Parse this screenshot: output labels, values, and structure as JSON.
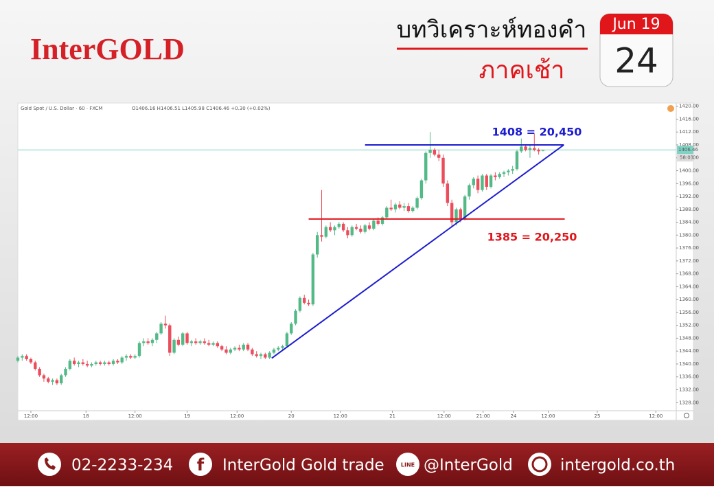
{
  "header": {
    "logo": "InterGOLD",
    "title": "บทวิเคราะห์ทองคำ",
    "subtitle": "ภาคเช้า",
    "calendar_month": "Jun 19",
    "calendar_day": "24"
  },
  "chart_data": {
    "type": "candlestick",
    "symbol": "Gold Spot / U.S. Dollar · 60 · FXCM",
    "ohlc_text": "O1406.16 H1406.51 L1405.98 C1406.46 +0.30 (+0.02%)",
    "up_color": "#53b987",
    "down_color": "#eb4d5c",
    "x": [
      9,
      10,
      11,
      12,
      13,
      14,
      15,
      16,
      17,
      18,
      19,
      20,
      21,
      22,
      23,
      24,
      25,
      26,
      27,
      28,
      29,
      30,
      31,
      32,
      33,
      34,
      35,
      36,
      37,
      38,
      39,
      40,
      41,
      42,
      43,
      44,
      45,
      46,
      47,
      48,
      49,
      50,
      51,
      52,
      53,
      54,
      55,
      56,
      57,
      58,
      59,
      60,
      61,
      62,
      63,
      64,
      65,
      66,
      67,
      68,
      69,
      70,
      71,
      72,
      73,
      74,
      75,
      76,
      77,
      78,
      79,
      80,
      81,
      82,
      83,
      84,
      85,
      86,
      87,
      88,
      89,
      90,
      91,
      92,
      93,
      94,
      95,
      96,
      97,
      98,
      99,
      100,
      101,
      102,
      103,
      104,
      105,
      106,
      107,
      108,
      109,
      110,
      111,
      112,
      113,
      114,
      115,
      116,
      117,
      118,
      119,
      120,
      121,
      122,
      123,
      124,
      125,
      126,
      127,
      128,
      129,
      130
    ],
    "candles": [
      [
        1341,
        1342.5,
        1340.5,
        1342
      ],
      [
        1342,
        1343,
        1341,
        1342.5
      ],
      [
        1342.5,
        1343,
        1341,
        1341.5
      ],
      [
        1341.5,
        1342,
        1340,
        1340.5
      ],
      [
        1340.5,
        1341,
        1338,
        1338.5
      ],
      [
        1338.5,
        1339,
        1336,
        1336.5
      ],
      [
        1336.5,
        1337,
        1334.5,
        1335.5
      ],
      [
        1335.5,
        1336,
        1334,
        1334.5
      ],
      [
        1334.5,
        1335.5,
        1333.5,
        1335
      ],
      [
        1335,
        1335.5,
        1333.5,
        1334
      ],
      [
        1334,
        1337,
        1333.5,
        1336.5
      ],
      [
        1336.5,
        1339,
        1336,
        1338.5
      ],
      [
        1338.5,
        1341.5,
        1338,
        1341
      ],
      [
        1341,
        1342,
        1339.5,
        1340
      ],
      [
        1340,
        1341,
        1339,
        1340.5
      ],
      [
        1340.5,
        1341.5,
        1339.5,
        1340
      ],
      [
        1340,
        1341,
        1339,
        1339.5
      ],
      [
        1339.5,
        1340.5,
        1339,
        1340
      ],
      [
        1340,
        1341,
        1339.5,
        1340.5
      ],
      [
        1340.5,
        1341,
        1339.5,
        1340
      ],
      [
        1340,
        1341,
        1339.5,
        1340.5
      ],
      [
        1340.5,
        1341,
        1339.5,
        1340
      ],
      [
        1340,
        1341.5,
        1339.5,
        1341
      ],
      [
        1341,
        1341.5,
        1340,
        1340.5
      ],
      [
        1340.5,
        1342.5,
        1340,
        1342
      ],
      [
        1342,
        1343,
        1341,
        1342.5
      ],
      [
        1342.5,
        1343,
        1341.5,
        1342
      ],
      [
        1342,
        1343,
        1341.5,
        1342.5
      ],
      [
        1342.5,
        1347,
        1342,
        1346.5
      ],
      [
        1346.5,
        1348,
        1345.5,
        1347
      ],
      [
        1347,
        1348,
        1346,
        1346.5
      ],
      [
        1346.5,
        1348,
        1345.5,
        1347.5
      ],
      [
        1347.5,
        1350,
        1346.5,
        1349.5
      ],
      [
        1349.5,
        1353,
        1349,
        1352.5
      ],
      [
        1352.5,
        1355,
        1351,
        1352
      ],
      [
        1352,
        1352.5,
        1342.5,
        1343.5
      ],
      [
        1343.5,
        1348,
        1343,
        1347.5
      ],
      [
        1347.5,
        1348.5,
        1345.5,
        1346
      ],
      [
        1346,
        1350,
        1345.5,
        1349.5
      ],
      [
        1349.5,
        1350,
        1346,
        1346.5
      ],
      [
        1346.5,
        1347.5,
        1345.5,
        1347
      ],
      [
        1347,
        1348,
        1346,
        1346.5
      ],
      [
        1346.5,
        1347.5,
        1346,
        1347
      ],
      [
        1347,
        1348,
        1346,
        1346.5
      ],
      [
        1346.5,
        1347.5,
        1345.5,
        1346
      ],
      [
        1346,
        1347,
        1345.5,
        1346.5
      ],
      [
        1346.5,
        1347,
        1345,
        1345.5
      ],
      [
        1345.5,
        1346,
        1344,
        1344.5
      ],
      [
        1344.5,
        1345.5,
        1343,
        1343.5
      ],
      [
        1343.5,
        1345,
        1343,
        1344.5
      ],
      [
        1344.5,
        1345.5,
        1344,
        1345
      ],
      [
        1345,
        1346,
        1344,
        1344.5
      ],
      [
        1344.5,
        1346.5,
        1344,
        1346
      ],
      [
        1346,
        1346.5,
        1344,
        1344.5
      ],
      [
        1344.5,
        1345,
        1342.5,
        1343
      ],
      [
        1343,
        1344,
        1342,
        1342.5
      ],
      [
        1342.5,
        1343.5,
        1341.5,
        1343
      ],
      [
        1343,
        1343.5,
        1341.5,
        1342
      ],
      [
        1342,
        1344,
        1341.5,
        1343.5
      ],
      [
        1343.5,
        1345,
        1343,
        1344.5
      ],
      [
        1344.5,
        1345.5,
        1344,
        1345
      ],
      [
        1345,
        1346,
        1344,
        1345.5
      ],
      [
        1345.5,
        1350,
        1345,
        1349.5
      ],
      [
        1349.5,
        1353,
        1349,
        1352.5
      ],
      [
        1352.5,
        1357,
        1352,
        1356.5
      ],
      [
        1356.5,
        1361,
        1356,
        1360.5
      ],
      [
        1360.5,
        1361.5,
        1358.5,
        1359
      ],
      [
        1359,
        1360,
        1358,
        1358.5
      ],
      [
        1358.5,
        1374.5,
        1358,
        1374
      ],
      [
        1374,
        1381,
        1373,
        1380
      ],
      [
        1380,
        1394,
        1378,
        1379.5
      ],
      [
        1379.5,
        1383,
        1379,
        1382.5
      ],
      [
        1382.5,
        1384,
        1381,
        1381.5
      ],
      [
        1381.5,
        1383,
        1380,
        1382.5
      ],
      [
        1382.5,
        1384,
        1382,
        1383.5
      ],
      [
        1383.5,
        1384,
        1381,
        1381.5
      ],
      [
        1381.5,
        1382.5,
        1379,
        1380
      ],
      [
        1380,
        1383,
        1379.5,
        1382.5
      ],
      [
        1382.5,
        1383.5,
        1381.5,
        1382
      ],
      [
        1382,
        1383,
        1380.5,
        1381
      ],
      [
        1381,
        1383.5,
        1380.5,
        1383
      ],
      [
        1383,
        1384,
        1381.5,
        1382
      ],
      [
        1382,
        1385,
        1381.5,
        1384.5
      ],
      [
        1384.5,
        1385.5,
        1383,
        1383.5
      ],
      [
        1383.5,
        1386,
        1383,
        1385.5
      ],
      [
        1385.5,
        1389,
        1385,
        1388.5
      ],
      [
        1388.5,
        1391,
        1387.5,
        1388
      ],
      [
        1388,
        1390,
        1387,
        1389.5
      ],
      [
        1389.5,
        1390.5,
        1388,
        1388.5
      ],
      [
        1388.5,
        1390,
        1387.5,
        1389
      ],
      [
        1389,
        1390,
        1387,
        1387.5
      ],
      [
        1387.5,
        1389,
        1387,
        1388.5
      ],
      [
        1388.5,
        1392,
        1388,
        1391.5
      ],
      [
        1391.5,
        1397.5,
        1391,
        1397
      ],
      [
        1397,
        1406,
        1396,
        1405.5
      ],
      [
        1405.5,
        1412,
        1404,
        1406.5
      ],
      [
        1406.5,
        1407,
        1404.5,
        1405
      ],
      [
        1405,
        1406.5,
        1403,
        1404
      ],
      [
        1404,
        1405,
        1395,
        1396
      ],
      [
        1396,
        1397,
        1389,
        1390
      ],
      [
        1390,
        1391,
        1382.5,
        1384
      ],
      [
        1384,
        1388.5,
        1383,
        1388
      ],
      [
        1388,
        1388.5,
        1384,
        1385
      ],
      [
        1385,
        1392.5,
        1384.5,
        1392
      ],
      [
        1392,
        1396,
        1391,
        1395.5
      ],
      [
        1395.5,
        1398,
        1394.5,
        1397.5
      ],
      [
        1397.5,
        1398.5,
        1393,
        1394
      ],
      [
        1394,
        1399,
        1393.5,
        1398.5
      ],
      [
        1398.5,
        1399,
        1394,
        1395
      ],
      [
        1395,
        1399,
        1394.5,
        1398.5
      ],
      [
        1398.5,
        1399.5,
        1397,
        1398
      ],
      [
        1398,
        1399.5,
        1397.5,
        1399
      ],
      [
        1399,
        1400,
        1398,
        1399.5
      ],
      [
        1399.5,
        1400.5,
        1398.5,
        1400
      ],
      [
        1400,
        1401.5,
        1399,
        1400.5
      ],
      [
        1400.5,
        1406.5,
        1400,
        1406
      ],
      [
        1406,
        1410,
        1405.5,
        1407.5
      ],
      [
        1407.5,
        1408,
        1406,
        1406.5
      ],
      [
        1406.5,
        1408,
        1404,
        1407
      ],
      [
        1407,
        1411.5,
        1406,
        1406.5
      ],
      [
        1406.5,
        1407,
        1405,
        1406
      ],
      [
        1406.16,
        1406.51,
        1405.98,
        1406.46
      ]
    ],
    "xlim": [
      9,
      160.7
    ],
    "ylim": [
      1325.5,
      1421
    ],
    "xticks": [
      {
        "value": 12,
        "label": "12:00"
      },
      {
        "value": 24.7,
        "label": "18"
      },
      {
        "value": 36,
        "label": "12:00"
      },
      {
        "value": 48,
        "label": "19"
      },
      {
        "value": 59.5,
        "label": "12:00"
      },
      {
        "value": 72,
        "label": "20"
      },
      {
        "value": 83.3,
        "label": "12:00"
      },
      {
        "value": 95.3,
        "label": "21"
      },
      {
        "value": 107.2,
        "label": "12:00"
      },
      {
        "value": 116.2,
        "label": "21:00"
      },
      {
        "value": 123.2,
        "label": "24"
      },
      {
        "value": 131.2,
        "label": "12:00"
      },
      {
        "value": 142.5,
        "label": "25"
      },
      {
        "value": 156,
        "label": "12:00"
      }
    ],
    "yticks": [
      {
        "value": 1328,
        "label": "1328.00"
      },
      {
        "value": 1332,
        "label": "1332.00"
      },
      {
        "value": 1336,
        "label": "1336.00"
      },
      {
        "value": 1340,
        "label": "1340.00"
      },
      {
        "value": 1344,
        "label": "1344.00"
      },
      {
        "value": 1348,
        "label": "1348.00"
      },
      {
        "value": 1352,
        "label": "1352.00"
      },
      {
        "value": 1356,
        "label": "1356.00"
      },
      {
        "value": 1360,
        "label": "1360.00"
      },
      {
        "value": 1364,
        "label": "1364.00"
      },
      {
        "value": 1368,
        "label": "1368.00"
      },
      {
        "value": 1372,
        "label": "1372.00"
      },
      {
        "value": 1376,
        "label": "1376.00"
      },
      {
        "value": 1380,
        "label": "1380.00"
      },
      {
        "value": 1384,
        "label": "1384.00"
      },
      {
        "value": 1388,
        "label": "1388.00"
      },
      {
        "value": 1392,
        "label": "1392.00"
      },
      {
        "value": 1396,
        "label": "1396.00"
      },
      {
        "value": 1400,
        "label": "1400.00"
      },
      {
        "value": 1404,
        "label": "1404.00"
      },
      {
        "value": 1408,
        "label": "1408.00"
      },
      {
        "value": 1412,
        "label": "1412.00"
      },
      {
        "value": 1416,
        "label": "1416.00"
      },
      {
        "value": 1420,
        "label": "1420.00"
      }
    ],
    "last_price": {
      "value": 1406.46,
      "label": "1406.46"
    },
    "countdown": "58:03",
    "last_price_color": "#7fd3c4",
    "lines": [
      {
        "x": [
          89,
          134.8
        ],
        "y": [
          1408,
          1408
        ],
        "color": "#1c1cd0"
      },
      {
        "x": [
          76,
          135
        ],
        "y": [
          1385,
          1385
        ],
        "color": "#e0161b"
      },
      {
        "x": [
          67.5,
          134.8
        ],
        "y": [
          1341.8,
          1408
        ],
        "color": "#1c1cd0"
      }
    ],
    "annotations": [
      {
        "text": "1408 = 20,450",
        "color": "#1c1cd0"
      },
      {
        "text": "1385 = 20,250",
        "color": "#e0161b"
      }
    ]
  },
  "footer": {
    "phone": "02-2233-234",
    "facebook": "InterGold Gold trade",
    "line": "@InterGold",
    "website": "intergold.co.th"
  }
}
